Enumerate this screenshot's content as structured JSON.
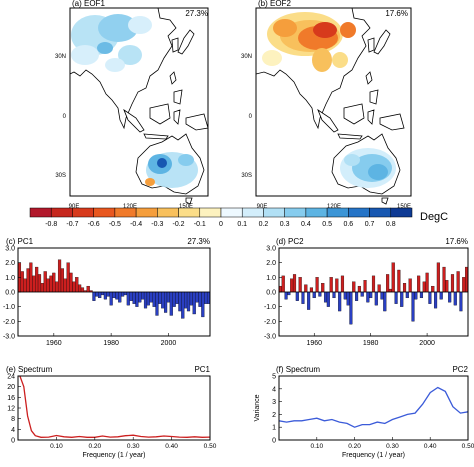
{
  "panels": {
    "a": {
      "label": "(a) EOF1",
      "pct": "27.3%"
    },
    "b": {
      "label": "(b) EOF2",
      "pct": "17.6%"
    },
    "c": {
      "label": "(c) PC1",
      "pct": "27.3%"
    },
    "d": {
      "label": "(d) PC2",
      "pct": "17.6%"
    },
    "e": {
      "label": "(e) Spectrum",
      "tag": "PC1"
    },
    "f": {
      "label": "(f) Spectrum",
      "tag": "PC2"
    }
  },
  "map_axes": {
    "lat_labels": [
      "30N",
      "0",
      "30S"
    ],
    "lon_labels": [
      "90E",
      "120E",
      "150E"
    ]
  },
  "colorbar": {
    "unit": "DegC",
    "labels": [
      "-0.8",
      "-0.7",
      "-0.6",
      "-0.5",
      "-0.4",
      "-0.3",
      "-0.2",
      "-0.1",
      "0",
      "0.1",
      "0.2",
      "0.3",
      "0.4",
      "0.5",
      "0.6",
      "0.7",
      "0.8"
    ],
    "colors": [
      "#b2182b",
      "#c6271e",
      "#d73a1c",
      "#e8571f",
      "#f07a2a",
      "#f59e3c",
      "#f8c05c",
      "#fbdd88",
      "#fdf2bf",
      "#eef9ff",
      "#d3eefb",
      "#b1e0f5",
      "#86ccee",
      "#5db4e3",
      "#3c95d6",
      "#2574c7",
      "#1757b1",
      "#0e3a94"
    ]
  },
  "colors": {
    "positive_bar": "#cc1f1f",
    "negative_bar": "#2a3fc2",
    "spectrum_pc1": "#cc1f1f",
    "spectrum_pc2": "#3b5bd9",
    "land": "#ffffff"
  },
  "chart_data": [
    {
      "id": "pc1",
      "type": "bar",
      "title": "(c) PC1",
      "x_start": 1948,
      "xticks": [
        1960,
        1980,
        2000
      ],
      "ylim": [
        -3.0,
        3.0
      ],
      "yticks": [
        "3.0",
        "2.0",
        "1.0",
        "0.0",
        "-1.0",
        "-2.0",
        "-3.0"
      ],
      "values": [
        2.0,
        1.4,
        0.9,
        1.6,
        2.0,
        1.1,
        1.7,
        1.2,
        0.6,
        1.4,
        0.9,
        1.1,
        1.3,
        0.7,
        2.2,
        1.6,
        0.9,
        2.0,
        1.3,
        0.7,
        1.0,
        0.5,
        0.3,
        0.1,
        0.4,
        0.1,
        -0.6,
        -0.3,
        -0.4,
        -0.2,
        -0.5,
        -0.3,
        -0.9,
        -0.4,
        -0.5,
        -0.7,
        -0.3,
        -0.2,
        -0.9,
        -0.6,
        -0.8,
        -1.0,
        -0.7,
        -0.5,
        -1.1,
        -0.9,
        -0.7,
        -1.0,
        -1.6,
        -0.8,
        -1.1,
        -1.4,
        -0.7,
        -1.6,
        -1.0,
        -0.8,
        -1.3,
        -1.8,
        -1.1,
        -1.3,
        -0.9,
        -1.5,
        -0.7,
        -1.0,
        -1.7,
        -0.8,
        -0.8
      ]
    },
    {
      "id": "pc2",
      "type": "bar",
      "title": "(d) PC2",
      "x_start": 1948,
      "xticks": [
        1960,
        1980,
        2000
      ],
      "ylim": [
        -3.0,
        3.0
      ],
      "yticks": [
        "3.0",
        "2.0",
        "1.0",
        "0.0",
        "-1.0",
        "-2.0",
        "-3.0"
      ],
      "values": [
        0.4,
        1.1,
        -0.5,
        -0.2,
        0.9,
        1.2,
        -0.6,
        1.0,
        -0.8,
        0.5,
        -1.2,
        0.3,
        -0.4,
        1.0,
        -0.3,
        0.6,
        -0.7,
        -1.0,
        1.0,
        -0.4,
        0.9,
        -1.3,
        1.1,
        -0.5,
        -0.9,
        -2.2,
        0.7,
        -0.6,
        0.4,
        -0.3,
        0.8,
        -0.7,
        -0.4,
        1.1,
        -0.9,
        0.5,
        -0.5,
        -1.3,
        1.2,
        0.2,
        2.0,
        -0.8,
        1.5,
        -1.0,
        0.6,
        -0.4,
        0.9,
        -2.0,
        -0.5,
        1.1,
        -0.4,
        0.7,
        1.3,
        -0.8,
        0.4,
        -1.1,
        2.0,
        -0.5,
        1.7,
        0.8,
        -0.7,
        1.2,
        -0.9,
        1.4,
        -1.3,
        1.0,
        1.7
      ]
    },
    {
      "id": "spec1",
      "type": "line",
      "title": "(e) Spectrum",
      "series_tag": "PC1",
      "xlabel": "Frequency (1 / year)",
      "ylabel": "Variance",
      "xlim": [
        0,
        0.5
      ],
      "ylim": [
        0,
        24
      ],
      "xticks": [
        "0.10",
        "0.20",
        "0.30",
        "0.40",
        "0.50"
      ],
      "yticks": [
        "0",
        "4",
        "8",
        "12",
        "16",
        "20",
        "24"
      ],
      "x": [
        0.005,
        0.015,
        0.025,
        0.035,
        0.045,
        0.06,
        0.08,
        0.1,
        0.12,
        0.14,
        0.16,
        0.18,
        0.2,
        0.22,
        0.24,
        0.26,
        0.28,
        0.3,
        0.32,
        0.34,
        0.36,
        0.38,
        0.4,
        0.42,
        0.44,
        0.46,
        0.48,
        0.5
      ],
      "y": [
        24.0,
        20.0,
        9.0,
        3.5,
        1.6,
        1.0,
        1.1,
        1.7,
        1.2,
        1.0,
        1.3,
        1.0,
        1.0,
        1.5,
        1.1,
        1.2,
        1.6,
        1.8,
        1.3,
        1.1,
        1.2,
        1.5,
        1.3,
        1.1,
        1.0,
        1.2,
        1.0,
        1.1
      ]
    },
    {
      "id": "spec2",
      "type": "line",
      "title": "(f) Spectrum",
      "series_tag": "PC2",
      "xlabel": "Frequency (1 / year)",
      "ylabel": "Variance",
      "xlim": [
        0,
        0.5
      ],
      "ylim": [
        0,
        5
      ],
      "xticks": [
        "0.10",
        "0.20",
        "0.30",
        "0.40",
        "0.50"
      ],
      "yticks": [
        "0",
        "1",
        "2",
        "3",
        "4",
        "5"
      ],
      "x": [
        0.0,
        0.02,
        0.04,
        0.06,
        0.08,
        0.1,
        0.12,
        0.14,
        0.16,
        0.18,
        0.2,
        0.22,
        0.24,
        0.26,
        0.28,
        0.3,
        0.32,
        0.34,
        0.36,
        0.38,
        0.4,
        0.42,
        0.44,
        0.46,
        0.48,
        0.5
      ],
      "y": [
        1.5,
        1.4,
        1.5,
        1.5,
        1.6,
        1.7,
        1.5,
        1.6,
        1.4,
        1.3,
        1.0,
        1.2,
        1.2,
        1.4,
        1.3,
        1.6,
        1.8,
        2.0,
        2.1,
        2.8,
        3.7,
        4.1,
        3.8,
        2.6,
        2.1,
        2.2
      ]
    }
  ]
}
